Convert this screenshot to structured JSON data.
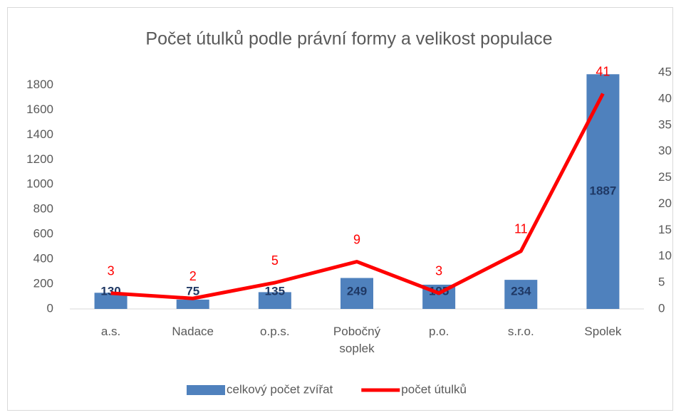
{
  "chart_data": {
    "type": "bar",
    "title": "Počet útulků podle právní formy a velikost populace",
    "categories": [
      "a.s.",
      "Nadace",
      "o.p.s.",
      "Pobočný soplek",
      "p.o.",
      "s.r.o.",
      "Spolek"
    ],
    "series": [
      {
        "name": "celkový počet zvířat",
        "color": "#4f81bd",
        "values": [
          130,
          75,
          135,
          249,
          195,
          234,
          1887
        ]
      },
      {
        "name": "počet útulků",
        "color": "#ff0000",
        "axis": "y2",
        "values": [
          3,
          2,
          5,
          9,
          3,
          11,
          41
        ]
      }
    ],
    "ylim": [
      0,
      1900
    ],
    "yticks": [
      0,
      200,
      400,
      600,
      800,
      1000,
      1200,
      1400,
      1600,
      1800
    ],
    "y2lim": [
      0,
      45
    ],
    "y2ticks": [
      0,
      5,
      10,
      15,
      20,
      25,
      30,
      35,
      40,
      45
    ],
    "legend": "bottom"
  }
}
